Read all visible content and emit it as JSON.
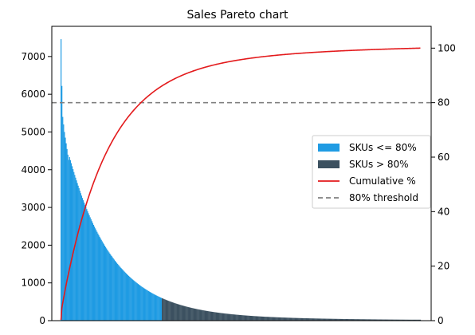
{
  "chart_data": {
    "type": "bar",
    "title": "Sales Pareto chart",
    "xlabel": "",
    "ylabel": "",
    "ylim": [
      0,
      7800
    ],
    "y2lim": [
      0,
      108
    ],
    "left_ticks": [
      0,
      1000,
      2000,
      3000,
      4000,
      5000,
      6000,
      7000
    ],
    "right_ticks": [
      0,
      20,
      40,
      60,
      80,
      100
    ],
    "threshold": 80,
    "bar_count": 420,
    "split_index": 118,
    "bar_value_profile": {
      "first_values": [
        7460,
        6220,
        5400,
        5200,
        5000,
        4850,
        4700,
        4550,
        4400,
        4260
      ],
      "at_index_40": 1250,
      "at_index_118": 460,
      "at_index_200": 240,
      "at_index_419": 25
    },
    "cumulative_profile": {
      "at_index_0": 0,
      "at_index_118": 80,
      "at_index_419": 100
    },
    "colors": {
      "above": "#1f9be3",
      "below": "#3c5160",
      "cumulative": "#e31a1c",
      "threshold": "#808080"
    },
    "legend": [
      {
        "label": "SKUs <= 80%",
        "kind": "patch",
        "color": "#1f9be3"
      },
      {
        "label": "SKUs > 80%",
        "kind": "patch",
        "color": "#3c5160"
      },
      {
        "label": "Cumulative %",
        "kind": "line",
        "color": "#e31a1c"
      },
      {
        "label": "80% threshold",
        "kind": "dashed",
        "color": "#808080"
      }
    ],
    "legend_placement": "center-right",
    "grid": false
  }
}
